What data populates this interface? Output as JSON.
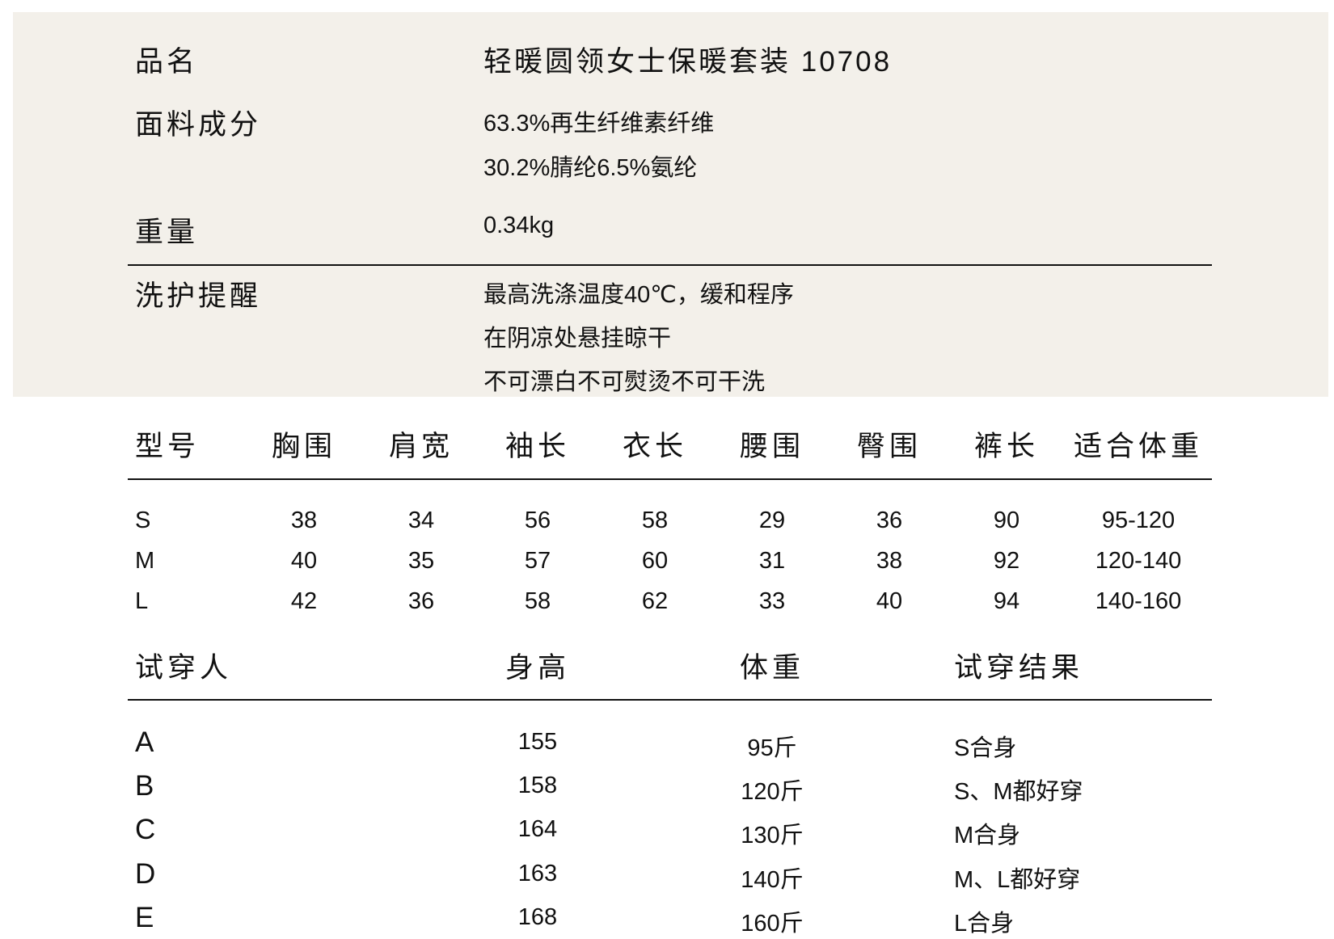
{
  "info": {
    "name_label": "品名",
    "name_value": "轻暖圆领女士保暖套装 10708",
    "fabric_label": "面料成分",
    "fabric_lines": [
      "63.3%再生纤维素纤维",
      "30.2%腈纶6.5%氨纶"
    ],
    "weight_label": "重量",
    "weight_value": "0.34kg",
    "care_label": "洗护提醒",
    "care_lines": [
      "最高洗涤温度40℃，缓和程序",
      "在阴凉处悬挂晾干",
      "不可漂白不可熨烫不可干洗"
    ]
  },
  "sizes": {
    "headers": [
      "型号",
      "胸围",
      "肩宽",
      "袖长",
      "衣长",
      "腰围",
      "臀围",
      "裤长",
      "适合体重"
    ],
    "rows": [
      [
        "S",
        "38",
        "34",
        "56",
        "58",
        "29",
        "36",
        "90",
        "95-120"
      ],
      [
        "M",
        "40",
        "35",
        "57",
        "60",
        "31",
        "38",
        "92",
        "120-140"
      ],
      [
        "L",
        "42",
        "36",
        "58",
        "62",
        "33",
        "40",
        "94",
        "140-160"
      ]
    ]
  },
  "fitting": {
    "headers": [
      "试穿人",
      "身高",
      "体重",
      "试穿结果"
    ],
    "rows": [
      [
        "A",
        "155",
        "95斤",
        "S合身"
      ],
      [
        "B",
        "158",
        "120斤",
        "S、M都好穿"
      ],
      [
        "C",
        "164",
        "130斤",
        "M合身"
      ],
      [
        "D",
        "163",
        "140斤",
        "M、L都好穿"
      ],
      [
        "E",
        "168",
        "160斤",
        "L合身"
      ]
    ]
  }
}
